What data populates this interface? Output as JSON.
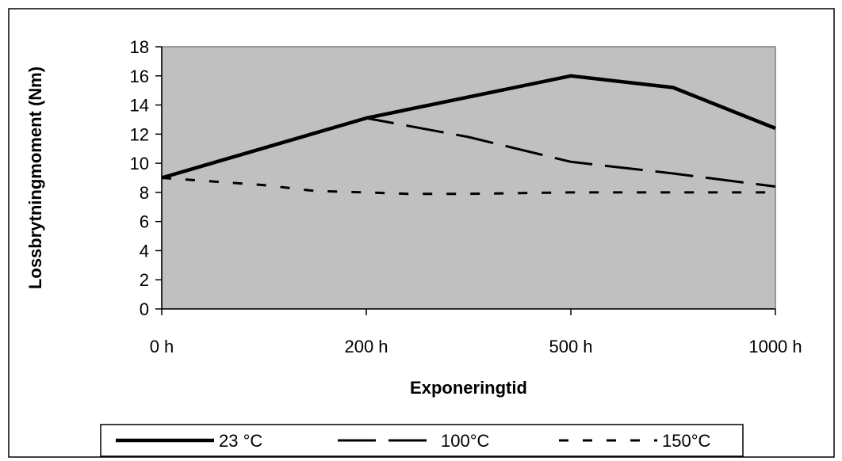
{
  "chart_data": {
    "type": "line",
    "title": "",
    "xlabel": "Exponeringtid",
    "ylabel": "Lossbrytningmoment (Nm)",
    "categories": [
      "0 h",
      "200 h",
      "500 h",
      "1000 h"
    ],
    "yticks": [
      0,
      2,
      4,
      6,
      8,
      10,
      12,
      14,
      16,
      18
    ],
    "ylim": [
      0,
      18
    ],
    "grid": false,
    "legend_position": "bottom",
    "colors": {
      "plot_background": "#c0c0c0",
      "line": "#000000",
      "page_background": "#ffffff"
    },
    "series": [
      {
        "name": "23 °C",
        "style": "solid",
        "x": [
          0,
          1,
          2,
          2.5,
          3
        ],
        "values": [
          9,
          13.1,
          16,
          15.2,
          12.4
        ]
      },
      {
        "name": "100°C",
        "style": "long-dash",
        "x": [
          0,
          1,
          1.5,
          2,
          2.5,
          3
        ],
        "values": [
          9,
          13.1,
          11.8,
          10.1,
          9.3,
          8.4
        ]
      },
      {
        "name": "150°C",
        "style": "short-dash",
        "x": [
          0,
          0.5,
          0.75,
          1,
          1.2,
          1.5,
          2,
          2.5,
          3
        ],
        "values": [
          9,
          8.5,
          8.1,
          8,
          7.9,
          7.9,
          8,
          8,
          8
        ]
      }
    ]
  }
}
